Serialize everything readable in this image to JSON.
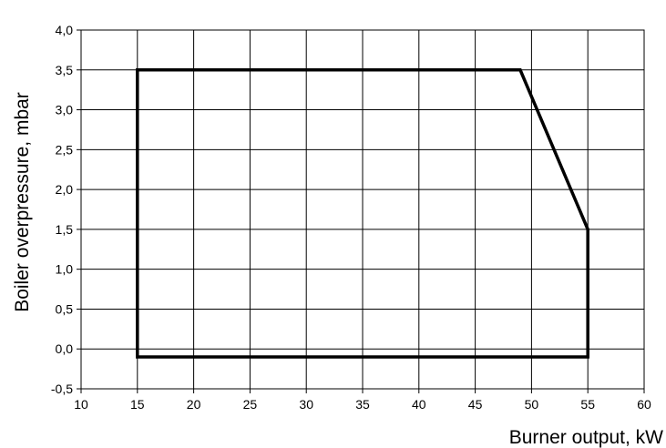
{
  "chart_data": {
    "type": "line",
    "title": "",
    "xlabel": "Burner output, kW",
    "ylabel": "Boiler overpressure, mbar",
    "xlim": [
      10,
      60
    ],
    "ylim": [
      -0.5,
      4.0
    ],
    "x_ticks": [
      10,
      15,
      20,
      25,
      30,
      35,
      40,
      45,
      50,
      55,
      60
    ],
    "x_tick_labels": [
      "10",
      "15",
      "20",
      "25",
      "30",
      "35",
      "40",
      "45",
      "50",
      "55",
      "60"
    ],
    "y_ticks": [
      -0.5,
      0.0,
      0.5,
      1.0,
      1.5,
      2.0,
      2.5,
      3.0,
      3.5,
      4.0
    ],
    "y_tick_labels": [
      "-0,5",
      "0,0",
      "0,5",
      "1,0",
      "1,5",
      "2,0",
      "2,5",
      "3,0",
      "3,5",
      "4,0"
    ],
    "grid": true,
    "legend": "none",
    "series": [
      {
        "color": "#000000",
        "x": [
          15,
          15,
          49,
          55,
          55,
          15
        ],
        "y": [
          -0.1,
          3.5,
          3.5,
          1.5,
          -0.1,
          -0.1
        ]
      }
    ]
  }
}
